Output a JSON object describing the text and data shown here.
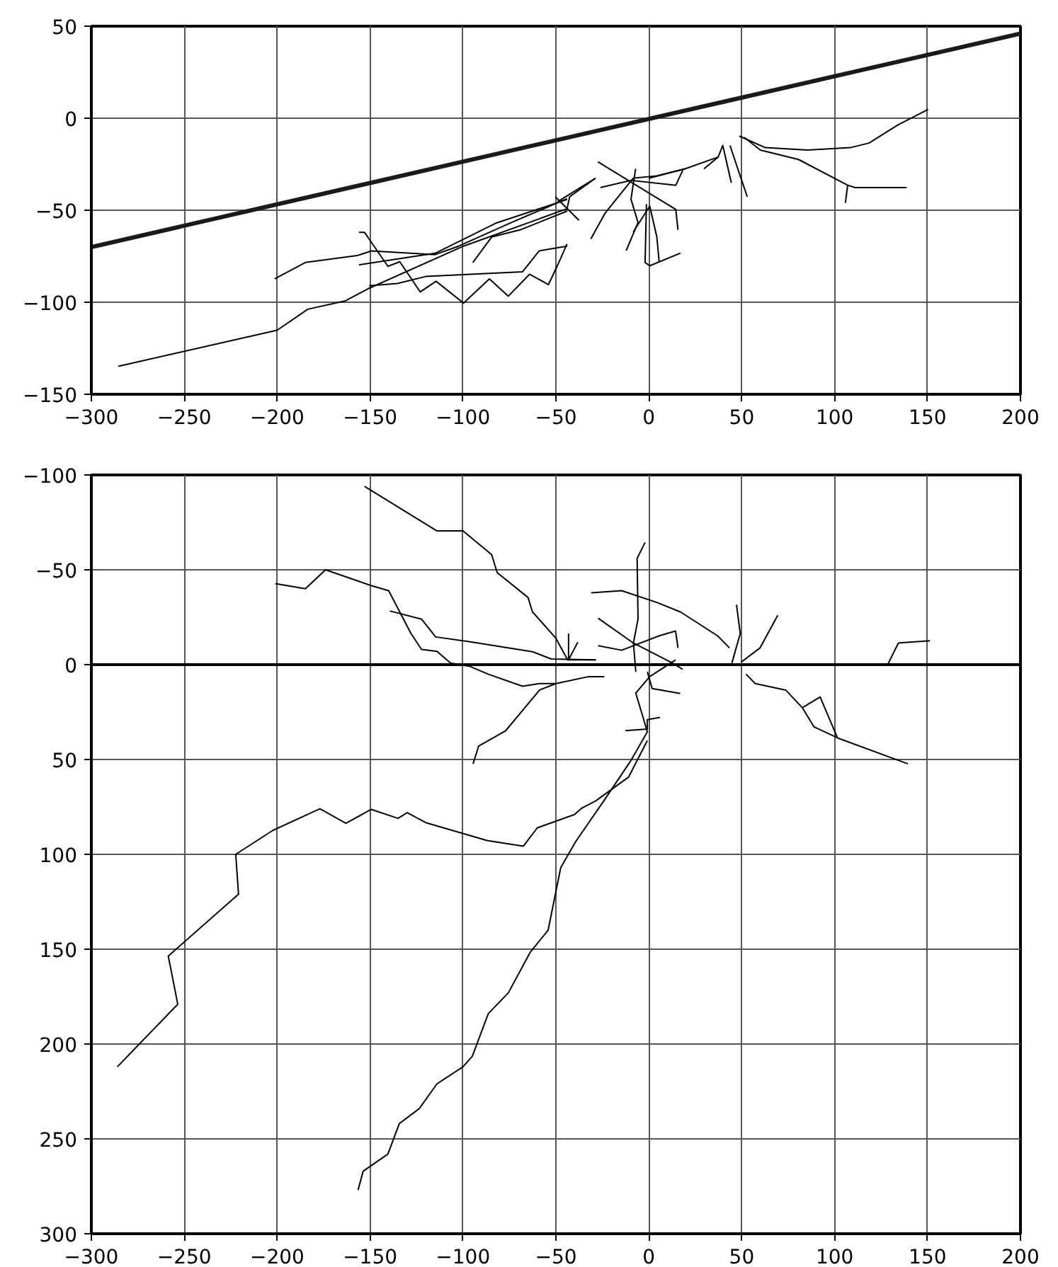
{
  "chart_data": [
    {
      "type": "line",
      "xlim": [
        -300,
        200
      ],
      "ylim": [
        -150,
        50
      ],
      "xticks": [
        -300,
        -250,
        -200,
        -150,
        -100,
        -50,
        0,
        50,
        100,
        150,
        200
      ],
      "yticks": [
        -150,
        -100,
        -50,
        0,
        50
      ],
      "grid": true,
      "marker": "none",
      "line_style": "solid",
      "series": [
        {
          "color": "#1a1a1a",
          "x": [
            -300,
            200
          ],
          "values": [
            -70,
            46
          ]
        },
        {
          "color": "#000000",
          "x": [
            -285.5,
            -200,
            -183.5,
            -163.2,
            -150.5,
            -99.7,
            -44,
            -42.6,
            -28.7
          ],
          "values": [
            -134.8,
            -115.2,
            -103.8,
            -99.2,
            -92.4,
            -69.5,
            -49.2,
            -42.7,
            -32.6
          ]
        },
        {
          "color": "#000000",
          "x": [
            -201.3,
            -184.8,
            -156.9,
            -149.2,
            -115,
            -102.3,
            -74.4,
            -44
          ],
          "values": [
            -87.3,
            -78.4,
            -74.6,
            -72.1,
            -74.1,
            -69.5,
            -56.9,
            -43.7
          ]
        },
        {
          "color": "#000000",
          "x": [
            -156,
            -153,
            -140.4,
            -134,
            -123,
            -114.5,
            -99.7,
            -85.8,
            -75.6,
            -64.2,
            -54,
            -49,
            -44
          ],
          "values": [
            -62,
            -62,
            -80.5,
            -78,
            -94.4,
            -88.6,
            -100.5,
            -87.3,
            -96.7,
            -84.8,
            -90.4,
            -79.7,
            -68.3
          ]
        },
        {
          "color": "#000000",
          "x": [
            -156,
            -115,
            -82,
            -44
          ],
          "values": [
            -79.7,
            -73.4,
            -56.9,
            -44.2
          ]
        },
        {
          "color": "#000000",
          "x": [
            -150.5,
            -135.3,
            -120,
            -68,
            -59,
            -44
          ],
          "values": [
            -91.1,
            -89.8,
            -86,
            -83.5,
            -72.1,
            -69.5
          ]
        },
        {
          "color": "#000000",
          "x": [
            -94.7,
            -84.5,
            -69.3,
            -44
          ],
          "values": [
            -78.4,
            -64.5,
            -60.7,
            -50.5
          ]
        },
        {
          "color": "#000000",
          "x": [
            48.7,
            62.7,
            85.5,
            108.4,
            118.5,
            133.8,
            150.3
          ],
          "values": [
            -9.7,
            -16,
            -17.3,
            -16,
            -13.5,
            -3.8,
            4.8
          ]
        },
        {
          "color": "#000000",
          "x": [
            51.3,
            60,
            80.5,
            107,
            111,
            138.8
          ],
          "values": [
            -10.4,
            -17.3,
            -22.4,
            -36.4,
            -37.7,
            -37.7
          ]
        },
        {
          "color": "#000000",
          "x": [
            107,
            105.8
          ],
          "values": [
            -36.4,
            -46
          ]
        },
        {
          "color": "#000000",
          "x": [
            29.7,
            37.3,
            39.8,
            44.4
          ],
          "values": [
            -27.5,
            -21.1,
            -14.8,
            -35.1
          ]
        },
        {
          "color": "#000000",
          "x": [
            43.7,
            48.7,
            53
          ],
          "values": [
            -14.8,
            -30,
            -42.7
          ]
        },
        {
          "color": "#000000",
          "x": [
            0,
            19.5,
            37.3
          ],
          "values": [
            -32.6,
            -27.5,
            -21.1
          ]
        },
        {
          "color": "#000000",
          "x": [
            -27.4,
            14.5,
            15.7
          ],
          "values": [
            -23.7,
            -49.6,
            -60.6
          ]
        },
        {
          "color": "#000000",
          "x": [
            -7.1,
            -9.6,
            -5.8,
            -12.2
          ],
          "values": [
            -27.5,
            -44,
            -56.7,
            -72
          ]
        },
        {
          "color": "#000000",
          "x": [
            -1.3,
            -2,
            0.5,
            17
          ],
          "values": [
            -46.6,
            -78.4,
            -80.2,
            -73.3
          ]
        },
        {
          "color": "#000000",
          "x": [
            -31.2,
            -23.6,
            -8.4,
            4.3,
            19.5
          ],
          "values": [
            -65.6,
            -51.7,
            -32.6,
            -31.3,
            -27.5
          ]
        },
        {
          "color": "#000000",
          "x": [
            -26.1,
            -9.6,
            14.5,
            18.3
          ],
          "values": [
            -37.7,
            -33.8,
            -36.4,
            -28.2
          ]
        },
        {
          "color": "#000000",
          "x": [
            -50.3,
            -37.6
          ],
          "values": [
            -42.7,
            -55.5
          ]
        },
        {
          "color": "#000000",
          "x": [
            -49,
            -28.7
          ],
          "values": [
            -45.3,
            -32.6
          ]
        },
        {
          "color": "#000000",
          "x": [
            -8.4,
            0.5,
            4.3,
            5.6
          ],
          "values": [
            -61.8,
            -47.8,
            -64.4,
            -78.4
          ]
        }
      ]
    },
    {
      "type": "line",
      "xlim": [
        -300,
        200
      ],
      "ylim": [
        300,
        -100
      ],
      "xticks": [
        -300,
        -250,
        -200,
        -150,
        -100,
        -50,
        0,
        50,
        100,
        150,
        200
      ],
      "yticks": [
        -100,
        -50,
        0,
        50,
        100,
        150,
        200,
        250,
        300
      ],
      "grid": true,
      "marker": "none",
      "line_style": "solid",
      "ref_lines": [
        {
          "axis": "y",
          "value": 0,
          "color": "#000000"
        }
      ],
      "series": [
        {
          "color": "#000000",
          "x": [
            -286,
            -253.5,
            -258.6,
            -220.8,
            -222.3,
            -202.4,
            -177,
            -163,
            -149.4,
            -135,
            -130,
            -119.7,
            -87,
            -67.5,
            -60,
            -40,
            -36,
            -28.5,
            -10.9,
            -0.8
          ],
          "values": [
            212,
            179,
            153.6,
            121,
            100,
            87.4,
            76,
            83.6,
            76.3,
            81,
            78,
            83.4,
            92.7,
            95.7,
            86,
            79,
            75.6,
            71.8,
            59.3,
            40
          ]
        },
        {
          "color": "#000000",
          "x": [
            -156.5,
            -153.7,
            -140.4,
            -134.3,
            -123.5,
            -114,
            -100,
            -95,
            -86.4,
            -75.6,
            -63.8,
            -54.2,
            -47.4,
            -39.3,
            -24.2,
            -9.6,
            -0.8,
            -7,
            0.5,
            14.4
          ],
          "values": [
            277,
            267,
            258,
            242,
            234,
            221,
            212,
            206.5,
            184,
            173,
            151.6,
            140,
            107,
            93.2,
            71.8,
            50.5,
            35.4,
            15,
            6.3,
            -2.5
          ]
        },
        {
          "color": "#000000",
          "x": [
            -153,
            -114,
            -100,
            -84.6,
            -81.6,
            -65,
            -62.6,
            -50,
            -43.7,
            -28.5
          ],
          "values": [
            -94,
            -70.5,
            -70.5,
            -58,
            -48.5,
            -35.4,
            -27.8,
            -13.9,
            -2.5,
            -2.5
          ]
        },
        {
          "color": "#000000",
          "x": [
            -43.2,
            -43.2,
            -38.2
          ],
          "values": [
            -16.4,
            -2.5,
            -11.9
          ]
        },
        {
          "color": "#000000",
          "x": [
            -201,
            -184.8,
            -174,
            -149.5,
            -140,
            -128,
            -122.3,
            -114,
            -106.7,
            -96.6,
            -86.5,
            -68,
            -58.8,
            -50,
            -32.3,
            -24
          ],
          "values": [
            -42.7,
            -40,
            -50,
            -41.7,
            -39,
            -16.4,
            -8,
            -7,
            -0.8,
            0.8,
            5,
            11.4,
            10,
            10,
            6.3,
            6.3
          ]
        },
        {
          "color": "#000000",
          "x": [
            -139.4,
            -122.3,
            -114.7,
            -96.7,
            -62.6,
            -52.5,
            -28.5
          ],
          "values": [
            -28.3,
            -24,
            -14.6,
            -12.1,
            -6.8,
            -3,
            -2.5
          ]
        },
        {
          "color": "#000000",
          "x": [
            -94.6,
            -91.6,
            -77,
            -58.8,
            -50
          ],
          "values": [
            52.3,
            43,
            34.8,
            13.4,
            10
          ]
        },
        {
          "color": "#000000",
          "x": [
            52.3,
            57.3,
            73.7,
            82.6,
            88.9,
            101.5,
            139.4
          ],
          "values": [
            5,
            10,
            13.4,
            22.7,
            32.8,
            38.6,
            52.3
          ]
        },
        {
          "color": "#000000",
          "x": [
            82.6,
            92.2,
            101.5
          ],
          "values": [
            22.7,
            17,
            38.6
          ]
        },
        {
          "color": "#000000",
          "x": [
            128.8,
            134.3,
            151.3
          ],
          "values": [
            -0.5,
            -11.4,
            -12.6
          ]
        },
        {
          "color": "#000000",
          "x": [
            -31,
            -14.6,
            4.3,
            17,
            37,
            43.4
          ],
          "values": [
            -37.9,
            -39,
            -32.8,
            -27.8,
            -15.2,
            -8.8
          ]
        },
        {
          "color": "#000000",
          "x": [
            -2,
            -6.3,
            -5.8,
            -8.3,
            -7
          ],
          "values": [
            -64.4,
            -56,
            -24,
            -11.4,
            3.8
          ]
        },
        {
          "color": "#000000",
          "x": [
            -27.3,
            -8.3,
            11.9,
            18.2
          ],
          "values": [
            -24.5,
            -11.4,
            -1.3,
            2.5
          ]
        },
        {
          "color": "#000000",
          "x": [
            44.7,
            49.2,
            47.2
          ],
          "values": [
            -0.8,
            -16.4,
            -31.6
          ]
        },
        {
          "color": "#000000",
          "x": [
            49.7,
            59.8,
            69.4
          ],
          "values": [
            -1.3,
            -8.8,
            -26
          ]
        },
        {
          "color": "#000000",
          "x": [
            -27.3,
            -14.6,
            5.6,
            14.4,
            15.7
          ],
          "values": [
            -10,
            -7.6,
            -15.2,
            -17.7,
            -8.8
          ]
        },
        {
          "color": "#000000",
          "x": [
            -0.8,
            1.8,
            16.9
          ],
          "values": [
            3.8,
            12.6,
            15.2
          ]
        },
        {
          "color": "#000000",
          "x": [
            -12.6,
            -0.8,
            -0.8,
            6
          ],
          "values": [
            34.8,
            34,
            29,
            27.8
          ]
        }
      ]
    }
  ]
}
